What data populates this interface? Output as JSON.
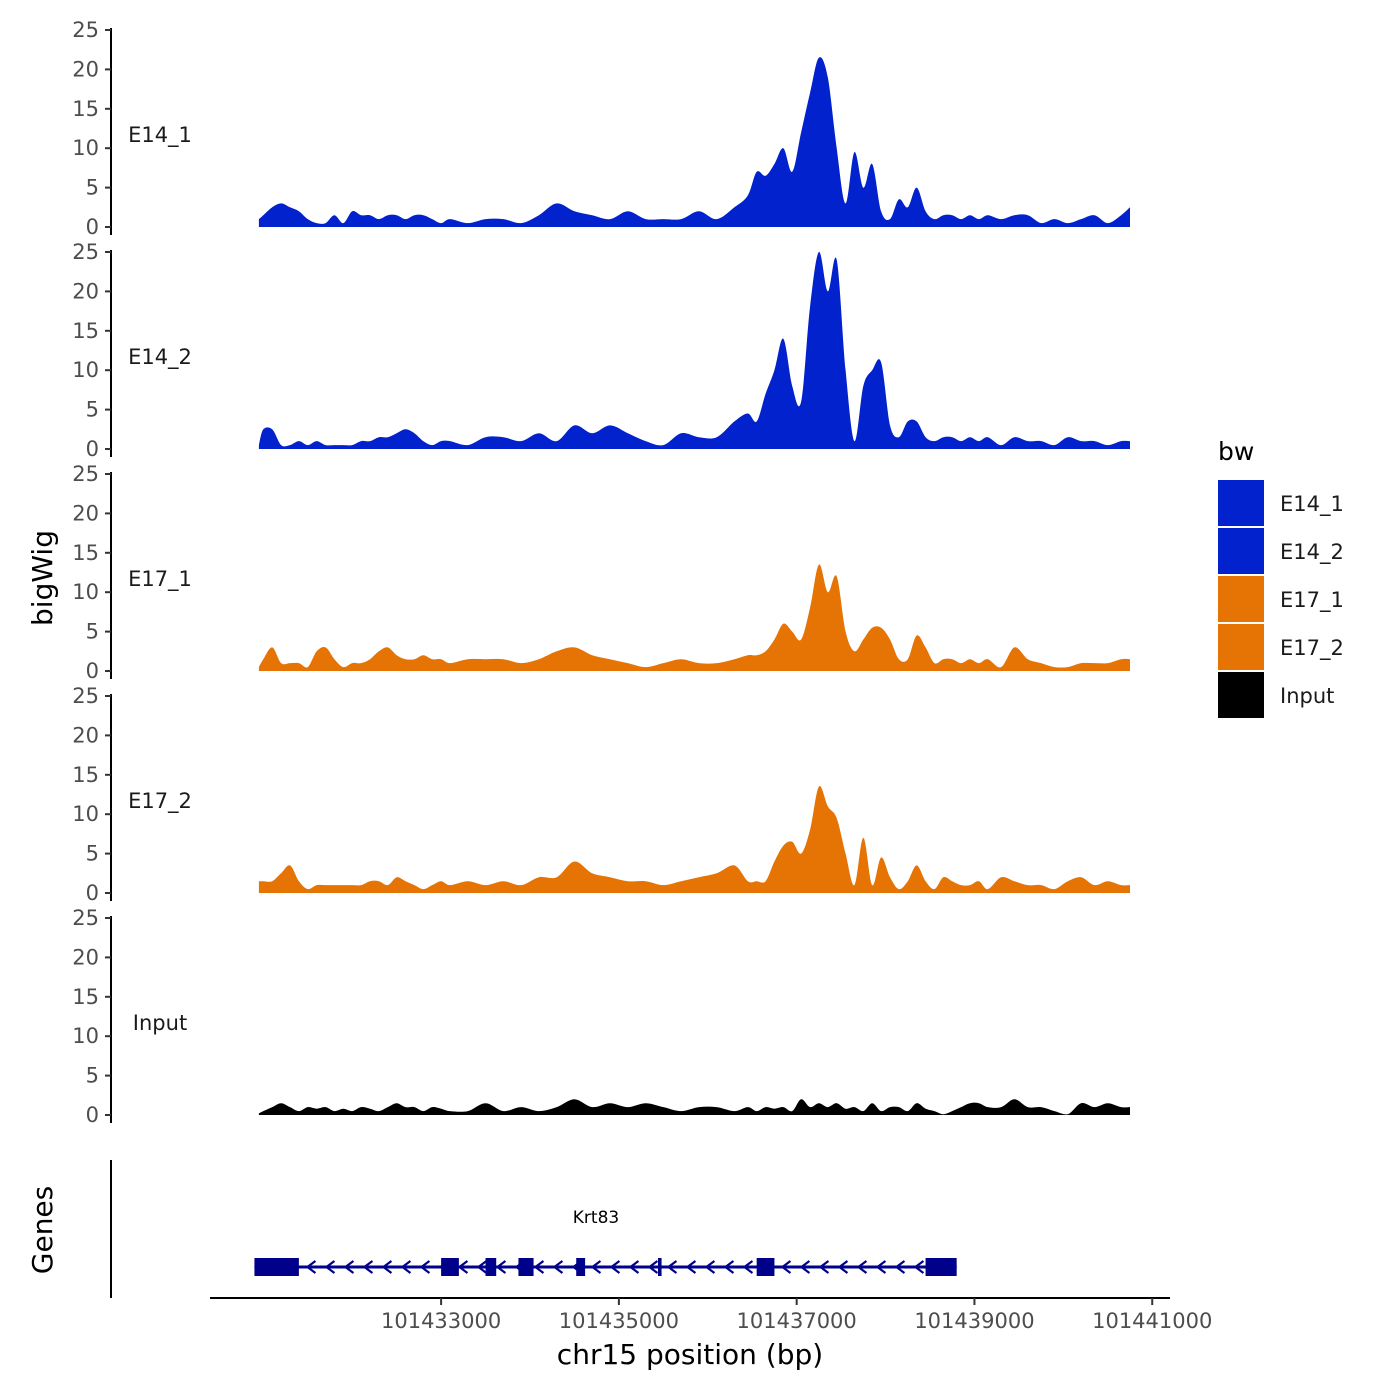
{
  "chart_data": {
    "type": "area",
    "ylabel": "bigWig",
    "xlabel": "chr15 position (bp)",
    "ylim": [
      0,
      25
    ],
    "yticks": [
      0,
      5,
      10,
      15,
      20,
      25
    ],
    "xlim": [
      101430400,
      101441200
    ],
    "xticks": [
      101433000,
      101435000,
      101437000,
      101439000,
      101441000
    ],
    "xtick_labels": [
      "101433000",
      "101435000",
      "101437000",
      "101439000",
      "101441000"
    ],
    "genes_label": "Genes",
    "legend": {
      "title": "bw",
      "entries": [
        {
          "label": "E14_1",
          "color": "#0122CC"
        },
        {
          "label": "E14_2",
          "color": "#0122CC"
        },
        {
          "label": "E17_1",
          "color": "#E57404"
        },
        {
          "label": "E17_2",
          "color": "#E57404"
        },
        {
          "label": "Input",
          "color": "#000000"
        }
      ]
    },
    "series": [
      {
        "name": "E14_1",
        "color": "#0122CC",
        "x": [
          101430950,
          101431000,
          101431100,
          101431200,
          101431300,
          101431400,
          101431500,
          101431600,
          101431700,
          101431800,
          101431900,
          101432000,
          101432100,
          101432200,
          101432300,
          101432400,
          101432500,
          101432600,
          101432700,
          101432800,
          101432900,
          101433000,
          101433100,
          101433300,
          101433500,
          101433700,
          101433900,
          101434100,
          101434300,
          101434500,
          101434700,
          101434900,
          101435100,
          101435300,
          101435500,
          101435700,
          101435900,
          101436100,
          101436300,
          101436450,
          101436550,
          101436650,
          101436750,
          101436850,
          101436950,
          101437050,
          101437150,
          101437250,
          101437350,
          101437450,
          101437550,
          101437650,
          101437750,
          101437850,
          101437950,
          101438050,
          101438150,
          101438250,
          101438350,
          101438450,
          101438550,
          101438650,
          101438750,
          101438850,
          101438950,
          101439050,
          101439150,
          101439300,
          101439450,
          101439600,
          101439750,
          101439900,
          101440050,
          101440200,
          101440350,
          101440500,
          101440650,
          101440750
        ],
        "values": [
          1,
          1.5,
          2.5,
          3,
          2.5,
          2,
          1,
          0.5,
          0.5,
          1.5,
          0.5,
          2,
          1.5,
          1.5,
          1,
          1.5,
          1.5,
          1,
          1.5,
          1.5,
          1,
          0.5,
          1,
          0.5,
          1,
          1,
          0.5,
          1.5,
          3,
          2,
          1.5,
          1,
          2,
          1,
          1,
          1,
          2,
          1,
          2.5,
          4,
          7,
          6.5,
          8,
          10,
          7,
          12,
          17,
          21.5,
          19,
          10,
          3,
          9.5,
          5,
          8,
          2,
          1,
          3.5,
          2.5,
          5,
          2,
          1,
          1.5,
          1.5,
          1,
          1.5,
          1,
          1.5,
          1,
          1.5,
          1.5,
          0.5,
          1,
          0.5,
          1,
          1.5,
          0.5,
          1.5,
          2.5
        ]
      },
      {
        "name": "E14_2",
        "color": "#0122CC",
        "x": [
          101430950,
          101431000,
          101431100,
          101431200,
          101431300,
          101431400,
          101431500,
          101431600,
          101431700,
          101431800,
          101431900,
          101432000,
          101432100,
          101432200,
          101432300,
          101432400,
          101432500,
          101432600,
          101432700,
          101432800,
          101432900,
          101433000,
          101433100,
          101433300,
          101433500,
          101433700,
          101433900,
          101434100,
          101434300,
          101434500,
          101434700,
          101434900,
          101435100,
          101435300,
          101435500,
          101435700,
          101435900,
          101436100,
          101436300,
          101436450,
          101436550,
          101436650,
          101436750,
          101436850,
          101436950,
          101437050,
          101437150,
          101437250,
          101437350,
          101437450,
          101437550,
          101437650,
          101437750,
          101437850,
          101437950,
          101438050,
          101438150,
          101438250,
          101438350,
          101438450,
          101438550,
          101438650,
          101438750,
          101438850,
          101438950,
          101439050,
          101439150,
          101439300,
          101439450,
          101439600,
          101439750,
          101439900,
          101440050,
          101440200,
          101440350,
          101440500,
          101440650,
          101440750
        ],
        "values": [
          0.5,
          2.5,
          2.5,
          0.5,
          0.5,
          1,
          0.5,
          1,
          0.5,
          0.5,
          0.5,
          0.5,
          1,
          1,
          1.5,
          1.5,
          2,
          2.5,
          2,
          1,
          0.5,
          1,
          1,
          0.5,
          1.5,
          1.5,
          1,
          2,
          1,
          3,
          2,
          3,
          2,
          1,
          0.5,
          2,
          1.5,
          1.5,
          3.5,
          4.5,
          3.5,
          7,
          10,
          14,
          8,
          6,
          18,
          25,
          20,
          24,
          10,
          1,
          8,
          10,
          11,
          3,
          1.5,
          3.5,
          3.5,
          1.5,
          1,
          1.5,
          1.5,
          1,
          1.5,
          1,
          1.5,
          0.5,
          1.5,
          1,
          1,
          0.5,
          1.5,
          1,
          1,
          0.5,
          1,
          1
        ]
      },
      {
        "name": "E17_1",
        "color": "#E57404",
        "x": [
          101430950,
          101431000,
          101431100,
          101431200,
          101431300,
          101431400,
          101431500,
          101431600,
          101431700,
          101431800,
          101431900,
          101432000,
          101432100,
          101432200,
          101432300,
          101432400,
          101432500,
          101432600,
          101432700,
          101432800,
          101432900,
          101433000,
          101433100,
          101433300,
          101433500,
          101433700,
          101433900,
          101434100,
          101434300,
          101434500,
          101434700,
          101434900,
          101435100,
          101435300,
          101435500,
          101435700,
          101435900,
          101436100,
          101436300,
          101436450,
          101436550,
          101436650,
          101436750,
          101436850,
          101436950,
          101437050,
          101437150,
          101437250,
          101437350,
          101437450,
          101437550,
          101437650,
          101437750,
          101437850,
          101437950,
          101438050,
          101438150,
          101438250,
          101438350,
          101438450,
          101438550,
          101438650,
          101438750,
          101438850,
          101438950,
          101439050,
          101439150,
          101439300,
          101439450,
          101439600,
          101439750,
          101439900,
          101440050,
          101440200,
          101440350,
          101440500,
          101440650,
          101440750
        ],
        "values": [
          0.5,
          1.5,
          3,
          1,
          1,
          1,
          0.5,
          2.5,
          3,
          1.5,
          0.5,
          1,
          1,
          1.5,
          2.5,
          3,
          2,
          1.5,
          1.5,
          2,
          1.5,
          1.5,
          1,
          1.5,
          1.5,
          1.5,
          1,
          1.5,
          2.5,
          3,
          2,
          1.5,
          1,
          0.5,
          1,
          1.5,
          1,
          1,
          1.5,
          2,
          2,
          2.5,
          4,
          6,
          5,
          4,
          8,
          13.5,
          10,
          12,
          5,
          2.5,
          4,
          5.5,
          5.5,
          4,
          1.5,
          1.5,
          4.5,
          3,
          1,
          1.5,
          1.5,
          1,
          1.5,
          1,
          1.5,
          0.5,
          3,
          1.5,
          1,
          0.5,
          0.5,
          1,
          1,
          1,
          1.5,
          1.5
        ]
      },
      {
        "name": "E17_2",
        "color": "#E57404",
        "x": [
          101430950,
          101431000,
          101431100,
          101431200,
          101431300,
          101431400,
          101431500,
          101431600,
          101431700,
          101431800,
          101431900,
          101432000,
          101432100,
          101432200,
          101432300,
          101432400,
          101432500,
          101432600,
          101432700,
          101432800,
          101432900,
          101433000,
          101433100,
          101433300,
          101433500,
          101433700,
          101433900,
          101434100,
          101434300,
          101434500,
          101434700,
          101434900,
          101435100,
          101435300,
          101435500,
          101435700,
          101435900,
          101436100,
          101436300,
          101436450,
          101436550,
          101436650,
          101436750,
          101436850,
          101436950,
          101437050,
          101437150,
          101437250,
          101437350,
          101437450,
          101437550,
          101437650,
          101437750,
          101437850,
          101437950,
          101438050,
          101438150,
          101438250,
          101438350,
          101438450,
          101438550,
          101438650,
          101438750,
          101438850,
          101438950,
          101439050,
          101439150,
          101439300,
          101439450,
          101439600,
          101439750,
          101439900,
          101440050,
          101440200,
          101440350,
          101440500,
          101440650,
          101440750
        ],
        "values": [
          1.5,
          1.5,
          1.5,
          2.5,
          3.5,
          1.5,
          0.5,
          1,
          1,
          1,
          1,
          1,
          1,
          1.5,
          1.5,
          1,
          2,
          1.5,
          1,
          0.5,
          1,
          1.5,
          1,
          1.5,
          1,
          1.5,
          1,
          2,
          2,
          4,
          2.5,
          2,
          1.5,
          1.5,
          1,
          1.5,
          2,
          2.5,
          3.5,
          1.5,
          1.5,
          1.5,
          4,
          6,
          6.5,
          5,
          8,
          13.5,
          11,
          9.5,
          5,
          1,
          7,
          1,
          4.5,
          2,
          0.5,
          1.5,
          3.5,
          1.5,
          0.5,
          2,
          1.5,
          1,
          1,
          1.5,
          0.5,
          2,
          1.5,
          1,
          1,
          0.5,
          1.5,
          2,
          1,
          1.5,
          1,
          1
        ]
      },
      {
        "name": "Input",
        "color": "#000000",
        "x": [
          101430950,
          101431000,
          101431100,
          101431200,
          101431300,
          101431400,
          101431500,
          101431600,
          101431700,
          101431800,
          101431900,
          101432000,
          101432100,
          101432200,
          101432300,
          101432400,
          101432500,
          101432600,
          101432700,
          101432800,
          101432900,
          101433000,
          101433100,
          101433300,
          101433500,
          101433700,
          101433900,
          101434100,
          101434300,
          101434500,
          101434700,
          101434900,
          101435100,
          101435300,
          101435500,
          101435700,
          101435900,
          101436100,
          101436300,
          101436450,
          101436550,
          101436650,
          101436750,
          101436850,
          101436950,
          101437050,
          101437150,
          101437250,
          101437350,
          101437450,
          101437550,
          101437650,
          101437750,
          101437850,
          101437950,
          101438050,
          101438150,
          101438250,
          101438350,
          101438450,
          101438550,
          101438650,
          101438750,
          101438850,
          101438950,
          101439050,
          101439150,
          101439300,
          101439450,
          101439600,
          101439750,
          101439900,
          101440050,
          101440200,
          101440350,
          101440500,
          101440650,
          101440750
        ],
        "values": [
          0.2,
          0.5,
          1,
          1.5,
          1,
          0.5,
          1,
          0.8,
          1,
          0.5,
          0.8,
          0.5,
          1,
          0.8,
          0.5,
          1,
          1.5,
          1,
          1,
          0.5,
          1,
          0.8,
          0.5,
          0.5,
          1.5,
          0.5,
          1,
          0.5,
          1,
          2,
          1,
          1.5,
          1,
          1.5,
          1,
          0.5,
          1,
          1,
          0.5,
          1,
          0.5,
          1,
          0.8,
          1,
          0.5,
          2,
          1,
          1.5,
          1,
          1.5,
          0.8,
          1,
          0.5,
          1.5,
          0.5,
          1,
          1,
          0.5,
          1.5,
          0.8,
          0.5,
          0.1,
          0.5,
          1,
          1.5,
          1.5,
          1,
          1,
          2,
          1,
          1,
          0.5,
          0.1,
          1.5,
          1,
          1.5,
          1,
          1
        ]
      }
    ],
    "genes": [
      {
        "name": "Krt83",
        "strand": "-",
        "start": 101430900,
        "end": 101438800,
        "exons": [
          [
            101430900,
            101431400
          ],
          [
            101433000,
            101433200
          ],
          [
            101433500,
            101433620
          ],
          [
            101433870,
            101434040
          ],
          [
            101434520,
            101434620
          ],
          [
            101435440,
            101435480
          ],
          [
            101436550,
            101436750
          ],
          [
            101438450,
            101438800
          ]
        ]
      }
    ]
  }
}
